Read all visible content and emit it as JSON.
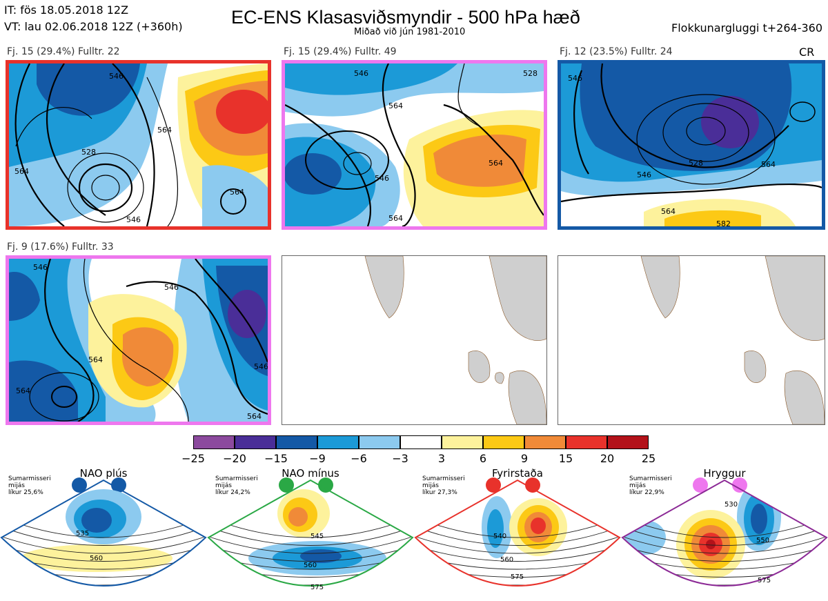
{
  "header": {
    "it_line": "IT: fös 18.05.2018 12Z",
    "vt_line": "VT: lau 02.06.2018 12Z  (+360h)",
    "title": "EC-ENS Klasasviðsmyndir - 500 hPa hæð",
    "subtitle": "Miðað við jún 1981-2010",
    "window": "Flokkunargluggi t+264-360"
  },
  "panels": [
    {
      "label": "Fj. 15 (29.4%)   Fulltr. 22",
      "border": "#e8322b",
      "tag": "",
      "contours": [
        "546",
        "564",
        "528",
        "564",
        "564",
        "546"
      ]
    },
    {
      "label": "Fj. 15 (29.4%)   Fulltr. 49",
      "border": "#ee77ee",
      "tag": "",
      "contours": [
        "546",
        "564",
        "546",
        "564",
        "564",
        "528"
      ]
    },
    {
      "label": "Fj. 12 (23.5%)   Fulltr. 24",
      "border": "#1459a6",
      "tag": "CR",
      "contours": [
        "546",
        "528",
        "546",
        "564",
        "564",
        "582"
      ]
    },
    {
      "label": "Fj. 9 (17.6%)   Fulltr. 33",
      "border": "#ee77ee",
      "tag": "",
      "contours": [
        "546",
        "564",
        "564",
        "546",
        "546",
        "564"
      ]
    }
  ],
  "colorbar": {
    "colors": [
      "#8c4a9e",
      "#4a2e98",
      "#1459a6",
      "#1c9ad7",
      "#8ccaef",
      "#ffffff",
      "#fdf29c",
      "#fcc915",
      "#f08a38",
      "#e8322b",
      "#b3121a"
    ],
    "ticks": [
      "−25",
      "−20",
      "−15",
      "−9",
      "−6",
      "−3",
      "3",
      "6",
      "9",
      "15",
      "20",
      "25"
    ]
  },
  "regimes": [
    {
      "title": "NAO plús",
      "info": [
        "Sumarmisseri",
        "mijás",
        "líkur 25,6%"
      ],
      "color": "#1459a6",
      "contours": [
        "535",
        "560"
      ]
    },
    {
      "title": "NAO mínus",
      "info": [
        "Sumarmisseri",
        "mijás",
        "líkur 24,2%"
      ],
      "color": "#2aa845",
      "contours": [
        "545",
        "560",
        "575"
      ]
    },
    {
      "title": "Fyrirstaða",
      "info": [
        "Sumarmisseri",
        "mijás",
        "líkur 27,3%"
      ],
      "color": "#e8322b",
      "contours": [
        "540",
        "560",
        "575"
      ]
    },
    {
      "title": "Hryggur",
      "info": [
        "Sumarmisseri",
        "mijás",
        "líkur 22,9%"
      ],
      "color": "#8c2a96",
      "dot_color": "#ee77ee",
      "contours": [
        "530",
        "550",
        "575"
      ]
    }
  ]
}
